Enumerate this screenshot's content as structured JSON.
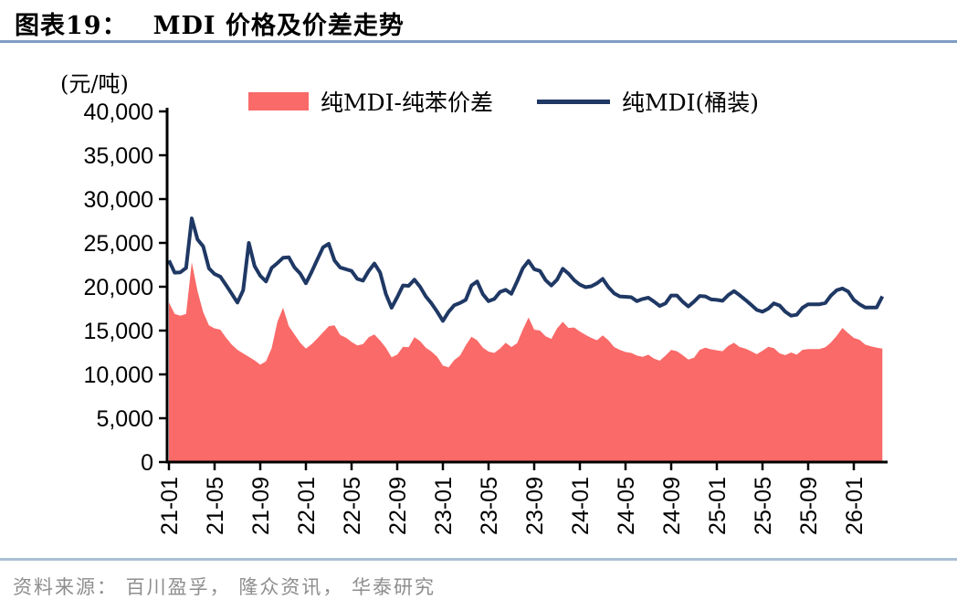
{
  "header": {
    "label": "图表19：",
    "title": "MDI 价格及价差走势"
  },
  "footer": {
    "source": "资料来源： 百川盈孚， 隆众资讯， 华泰研究"
  },
  "colors": {
    "title_rule": "#7E9CC3",
    "footer_rule": "#ABBED3",
    "source_text": "#8E8E8E",
    "axis": "#000000",
    "area_series": "#F96A68",
    "line_series": "#1F3864"
  },
  "chart_data": {
    "type": "area+line",
    "title": "MDI 价格及价差走势",
    "unit_label": "(元/吨)",
    "ylim": [
      0,
      40000
    ],
    "ytick_interval": 5000,
    "ytick_labels": [
      "0",
      "5,000",
      "10,000",
      "15,000",
      "20,000",
      "25,000",
      "30,000",
      "35,000",
      "40,000"
    ],
    "xtick_labels": [
      "21-01",
      "21-05",
      "21-09",
      "22-01",
      "22-05",
      "22-09",
      "23-01",
      "23-05",
      "23-09",
      "24-01",
      "24-05",
      "24-09",
      "25-01",
      "25-05",
      "25-09",
      "26-01"
    ],
    "xtick_interval_months": 4,
    "x_start": "2021-01",
    "x_step_months": 0.5,
    "grid": false,
    "legend_position": "top",
    "series": [
      {
        "name": "纯MDI-纯苯价差",
        "type": "area",
        "color": "#F96A68",
        "values": [
          18200,
          16900,
          16700,
          16900,
          22800,
          19500,
          17100,
          15600,
          15250,
          15100,
          14200,
          13400,
          12800,
          12400,
          12000,
          11600,
          11100,
          11500,
          13000,
          16000,
          17600,
          15500,
          14550,
          13600,
          12950,
          13450,
          14100,
          14800,
          15500,
          15600,
          14500,
          14200,
          13700,
          13300,
          13450,
          14250,
          14550,
          13850,
          13050,
          11950,
          12250,
          13150,
          13100,
          14250,
          13800,
          13050,
          12600,
          12000,
          11000,
          10800,
          11650,
          12150,
          13300,
          14300,
          13900,
          13050,
          12600,
          12450,
          12950,
          13600,
          13130,
          13550,
          15100,
          16500,
          15100,
          15000,
          14340,
          14050,
          15250,
          16000,
          15300,
          15350,
          14900,
          14500,
          14170,
          13900,
          14450,
          13900,
          13130,
          12800,
          12550,
          12450,
          12150,
          12000,
          12250,
          11800,
          11560,
          12150,
          12800,
          12650,
          12200,
          11700,
          11900,
          12800,
          13050,
          12850,
          12750,
          12650,
          13250,
          13600,
          13130,
          12950,
          12650,
          12300,
          12700,
          13150,
          13000,
          12400,
          12200,
          12500,
          12250,
          12800,
          12900,
          12900,
          12900,
          13100,
          13650,
          14400,
          15300,
          14700,
          14170,
          13950,
          13400,
          13200,
          13050,
          12950
        ]
      },
      {
        "name": "纯MDI(桶装)",
        "type": "line",
        "color": "#1F3864",
        "values": [
          23000,
          21600,
          21650,
          22150,
          27800,
          25400,
          24600,
          22100,
          21450,
          21150,
          20200,
          19200,
          18200,
          19600,
          25000,
          22350,
          21250,
          20600,
          22150,
          22700,
          23300,
          23350,
          22200,
          21500,
          20400,
          21700,
          23100,
          24500,
          24900,
          23000,
          22200,
          22000,
          21800,
          20900,
          20700,
          21800,
          22650,
          21600,
          19200,
          17600,
          18800,
          20150,
          20100,
          20800,
          20000,
          18900,
          18100,
          17150,
          16100,
          17150,
          17900,
          18150,
          18500,
          20150,
          20600,
          19150,
          18350,
          18600,
          19400,
          19650,
          19200,
          20600,
          22100,
          22950,
          22000,
          21800,
          20750,
          20150,
          20800,
          22050,
          21500,
          20750,
          20240,
          19950,
          20050,
          20400,
          20900,
          19950,
          19250,
          18900,
          18850,
          18800,
          18350,
          18600,
          18750,
          18300,
          17800,
          18100,
          19000,
          19000,
          18300,
          17750,
          18300,
          18950,
          18900,
          18550,
          18500,
          18400,
          19050,
          19500,
          19030,
          18500,
          17950,
          17350,
          17150,
          17500,
          18100,
          17850,
          17150,
          16700,
          16800,
          17600,
          18000,
          18000,
          18000,
          18150,
          19000,
          19600,
          19800,
          19450,
          18500,
          18000,
          17640,
          17640,
          17640,
          18900
        ]
      }
    ]
  }
}
